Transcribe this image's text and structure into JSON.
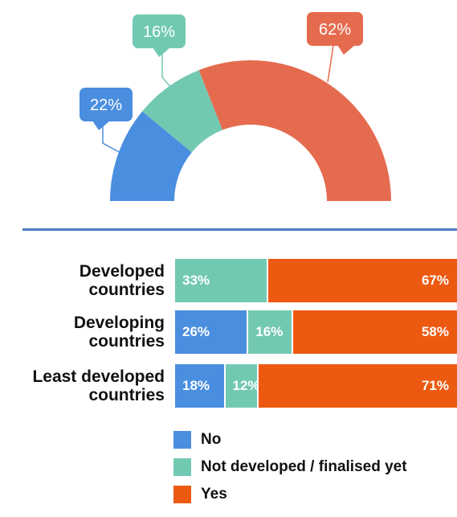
{
  "colors": {
    "no": "#4a8ee0",
    "not_developed": "#72c9b2",
    "yes_donut": "#e56b4f",
    "yes_bar": "#ec5a12"
  },
  "chart_data": [
    {
      "type": "pie",
      "variant": "semi-donut",
      "title": "",
      "categories": [
        "No",
        "Not developed / finalised yet",
        "Yes"
      ],
      "values": [
        22,
        16,
        62
      ],
      "labels": [
        "22%",
        "16%",
        "62%"
      ]
    },
    {
      "type": "bar",
      "variant": "stacked-horizontal-100",
      "title": "",
      "categories": [
        "Developed countries",
        "Developing countries",
        "Least developed countries"
      ],
      "category_lines": [
        [
          "Developed",
          "countries"
        ],
        [
          "Developing",
          "countries"
        ],
        [
          "Least developed",
          "countries"
        ]
      ],
      "series": [
        {
          "name": "No",
          "values": [
            0,
            26,
            18
          ],
          "labels": [
            "",
            "26%",
            "18%"
          ]
        },
        {
          "name": "Not developed / finalised yet",
          "values": [
            33,
            16,
            12
          ],
          "labels": [
            "33%",
            "16%",
            "12%"
          ]
        },
        {
          "name": "Yes",
          "values": [
            67,
            58,
            71
          ],
          "labels": [
            "67%",
            "58%",
            "71%"
          ]
        }
      ],
      "legend": {
        "position": "bottom",
        "items": [
          "No",
          "Not developed / finalised yet",
          "Yes"
        ]
      }
    }
  ]
}
